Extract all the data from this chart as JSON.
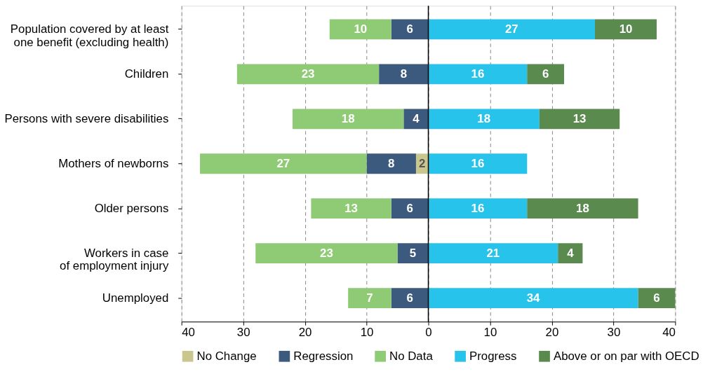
{
  "chart_data": {
    "type": "bar",
    "orientation": "horizontal",
    "categories": [
      "Population covered by at least\none benefit (excluding health)",
      "Children",
      "Persons with severe disabilities",
      "Mothers of newborns",
      "Older persons",
      "Workers in case\nof employment injury",
      "Unemployed"
    ],
    "series": [
      {
        "name": "No Change",
        "color": "#c9c78e",
        "values": [
          null,
          null,
          null,
          2,
          null,
          null,
          null
        ],
        "base": [
          null,
          null,
          null,
          -2,
          null,
          null,
          null
        ]
      },
      {
        "name": "Regression",
        "color": "#3b5a7d",
        "values": [
          6,
          8,
          4,
          8,
          6,
          5,
          6
        ],
        "base": [
          -6,
          -8,
          -4,
          -10,
          -6,
          -5,
          -6
        ]
      },
      {
        "name": "No Data",
        "color": "#8fca74",
        "values": [
          10,
          23,
          18,
          27,
          13,
          23,
          7
        ],
        "base": [
          -16,
          -31,
          -22,
          -37,
          -19,
          -28,
          -13
        ]
      },
      {
        "name": "Progress",
        "color": "#27c3eb",
        "values": [
          27,
          16,
          18,
          16,
          16,
          21,
          34
        ],
        "base": [
          0,
          0,
          0,
          0,
          0,
          0,
          0
        ]
      },
      {
        "name": "Above or on par with OECD",
        "color": "#5b8a4f",
        "values": [
          10,
          6,
          13,
          null,
          18,
          4,
          6
        ],
        "base": [
          27,
          16,
          18,
          null,
          16,
          21,
          34
        ]
      }
    ],
    "data_labels": true,
    "xlim": [
      -40,
      40
    ],
    "xticks": [
      {
        "value": -40,
        "label": "40"
      },
      {
        "value": -30,
        "label": "30"
      },
      {
        "value": -20,
        "label": "20"
      },
      {
        "value": -10,
        "label": "10"
      },
      0,
      10,
      20,
      30,
      40
    ],
    "ref_lines": [
      {
        "axis": "x",
        "value": 0,
        "color": "#000000"
      }
    ],
    "grid": "x",
    "legend": "bottom"
  }
}
